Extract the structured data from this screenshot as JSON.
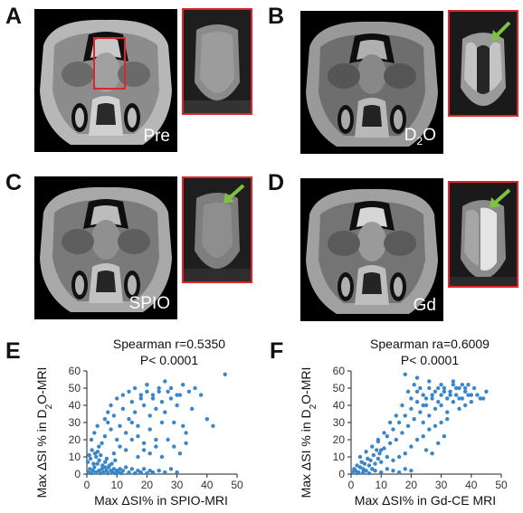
{
  "panels": {
    "A": {
      "letter": "A",
      "label": "Pre"
    },
    "B": {
      "letter": "B",
      "label_main": "D",
      "label_sub": "2",
      "label_tail": "O"
    },
    "C": {
      "letter": "C",
      "label": "SPIO"
    },
    "D": {
      "letter": "D",
      "label": "Gd"
    },
    "E": {
      "letter": "E"
    },
    "F": {
      "letter": "F"
    }
  },
  "colors": {
    "inset_border": "#e0242a",
    "arrow": "#7fc241",
    "points": "#3a86c8"
  },
  "chart_data": [
    {
      "type": "scatter",
      "panel": "E",
      "annotation": [
        "Spearman r=0.5350",
        "P< 0.0001"
      ],
      "xlabel": "Max ΔSI% in SPIO-MRI",
      "ylabel_main": "Max ΔSI % in D",
      "ylabel_sub": "2",
      "ylabel_tail": "O-MRI",
      "xlim": [
        0,
        50
      ],
      "ylim": [
        0,
        60
      ],
      "xticks": [
        "0",
        "10",
        "20",
        "30",
        "40",
        "50"
      ],
      "yticks": [
        "0",
        "10",
        "20",
        "30",
        "40",
        "50",
        "60"
      ],
      "points": [
        [
          0.5,
          1
        ],
        [
          1,
          3
        ],
        [
          1.5,
          0.5
        ],
        [
          2,
          2
        ],
        [
          2.5,
          4
        ],
        [
          3,
          1
        ],
        [
          3.5,
          6
        ],
        [
          4,
          2
        ],
        [
          4.5,
          0.5
        ],
        [
          5,
          3
        ],
        [
          5.5,
          1
        ],
        [
          6,
          4
        ],
        [
          6.5,
          2
        ],
        [
          7,
          0.5
        ],
        [
          7.5,
          5
        ],
        [
          8,
          2
        ],
        [
          8.5,
          1
        ],
        [
          9,
          3
        ],
        [
          9.5,
          0.5
        ],
        [
          10,
          2
        ],
        [
          0.3,
          7
        ],
        [
          1.2,
          9
        ],
        [
          2.2,
          6
        ],
        [
          3.1,
          10
        ],
        [
          4.1,
          8
        ],
        [
          5.2,
          5
        ],
        [
          6.1,
          7
        ],
        [
          7.2,
          4
        ],
        [
          8.3,
          6
        ],
        [
          9.4,
          8
        ],
        [
          0.8,
          11
        ],
        [
          2.7,
          12
        ],
        [
          4.6,
          11
        ],
        [
          6.6,
          9
        ],
        [
          1.7,
          14
        ],
        [
          3.6,
          13
        ],
        [
          10.5,
          1
        ],
        [
          11,
          3
        ],
        [
          11.5,
          0.5
        ],
        [
          12,
          2
        ],
        [
          13,
          4
        ],
        [
          14,
          1
        ],
        [
          15,
          3
        ],
        [
          16,
          0.5
        ],
        [
          17,
          2
        ],
        [
          18,
          1
        ],
        [
          19,
          3
        ],
        [
          20,
          0.5
        ],
        [
          21,
          2
        ],
        [
          22,
          1
        ],
        [
          24,
          2
        ],
        [
          26,
          1
        ],
        [
          28,
          3
        ],
        [
          30,
          1
        ],
        [
          1.5,
          20
        ],
        [
          2.5,
          24
        ],
        [
          3.5,
          28
        ],
        [
          4,
          16
        ],
        [
          5,
          18
        ],
        [
          6,
          22
        ],
        [
          7,
          30
        ],
        [
          8,
          26
        ],
        [
          9,
          34
        ],
        [
          10,
          20
        ],
        [
          11,
          28
        ],
        [
          12,
          38
        ],
        [
          13,
          24
        ],
        [
          14,
          32
        ],
        [
          15,
          42
        ],
        [
          16,
          36
        ],
        [
          17,
          28
        ],
        [
          18,
          44
        ],
        [
          19,
          40
        ],
        [
          20,
          48
        ],
        [
          21,
          34
        ],
        [
          22,
          46
        ],
        [
          23,
          38
        ],
        [
          24,
          50
        ],
        [
          25,
          42
        ],
        [
          26,
          36
        ],
        [
          27,
          48
        ],
        [
          28,
          44
        ],
        [
          29,
          30
        ],
        [
          30,
          40
        ],
        [
          31,
          46
        ],
        [
          32,
          28
        ],
        [
          33,
          24
        ],
        [
          35,
          38
        ],
        [
          38,
          46
        ],
        [
          40,
          32
        ],
        [
          42,
          28
        ],
        [
          46,
          58
        ],
        [
          10,
          44
        ],
        [
          12,
          46
        ],
        [
          14,
          48
        ],
        [
          16,
          50
        ],
        [
          18,
          46
        ],
        [
          20,
          52
        ],
        [
          22,
          44
        ],
        [
          24,
          48
        ],
        [
          26,
          54
        ],
        [
          28,
          50
        ],
        [
          30,
          46
        ],
        [
          32,
          52
        ],
        [
          34,
          48
        ],
        [
          36,
          50
        ],
        [
          15,
          30
        ],
        [
          17,
          22
        ],
        [
          19,
          18
        ],
        [
          21,
          26
        ],
        [
          23,
          20
        ],
        [
          25,
          30
        ],
        [
          9,
          12
        ],
        [
          11,
          16
        ],
        [
          13,
          14
        ],
        [
          15,
          20
        ],
        [
          17,
          10
        ],
        [
          19,
          14
        ],
        [
          21,
          12
        ],
        [
          23,
          16
        ],
        [
          25,
          10
        ],
        [
          27,
          20
        ],
        [
          29,
          16
        ],
        [
          31,
          12
        ],
        [
          33,
          18
        ],
        [
          8,
          40
        ],
        [
          7,
          36
        ],
        [
          6,
          32
        ]
      ]
    },
    {
      "type": "scatter",
      "panel": "F",
      "annotation": [
        "Spearman ra=0.6009",
        "P< 0.0001"
      ],
      "xlabel": "Max ΔSI% in Gd-CE MRI",
      "ylabel_main": "Max ΔSI % in D",
      "ylabel_sub": "2",
      "ylabel_tail": "O-MRI",
      "xlim": [
        0,
        50
      ],
      "ylim": [
        0,
        60
      ],
      "xticks": [
        "0",
        "10",
        "20",
        "30",
        "40",
        "50"
      ],
      "yticks": [
        "0",
        "10",
        "20",
        "30",
        "40",
        "50",
        "60"
      ],
      "points": [
        [
          0.5,
          1
        ],
        [
          1,
          3
        ],
        [
          1.5,
          2
        ],
        [
          2,
          5
        ],
        [
          2.5,
          1
        ],
        [
          3,
          4
        ],
        [
          3.5,
          7
        ],
        [
          4,
          3
        ],
        [
          4.5,
          6
        ],
        [
          5,
          2
        ],
        [
          5.5,
          9
        ],
        [
          6,
          5
        ],
        [
          6.5,
          8
        ],
        [
          7,
          3
        ],
        [
          7.5,
          11
        ],
        [
          8,
          6
        ],
        [
          8.5,
          14
        ],
        [
          9,
          9
        ],
        [
          9.5,
          12
        ],
        [
          10,
          7
        ],
        [
          2,
          0.5
        ],
        [
          4,
          1
        ],
        [
          6,
          0.5
        ],
        [
          8,
          2
        ],
        [
          10,
          1
        ],
        [
          12,
          3
        ],
        [
          14,
          2
        ],
        [
          16,
          1
        ],
        [
          18,
          3
        ],
        [
          20,
          2
        ],
        [
          3,
          10
        ],
        [
          5,
          13
        ],
        [
          7,
          16
        ],
        [
          9,
          19
        ],
        [
          11,
          15
        ],
        [
          12,
          22
        ],
        [
          13,
          18
        ],
        [
          14,
          26
        ],
        [
          15,
          20
        ],
        [
          16,
          30
        ],
        [
          17,
          24
        ],
        [
          18,
          34
        ],
        [
          19,
          28
        ],
        [
          20,
          38
        ],
        [
          21,
          32
        ],
        [
          22,
          42
        ],
        [
          23,
          36
        ],
        [
          24,
          46
        ],
        [
          25,
          40
        ],
        [
          26,
          50
        ],
        [
          27,
          44
        ],
        [
          28,
          48
        ],
        [
          29,
          42
        ],
        [
          30,
          46
        ],
        [
          31,
          50
        ],
        [
          32,
          44
        ],
        [
          33,
          48
        ],
        [
          34,
          52
        ],
        [
          35,
          46
        ],
        [
          36,
          50
        ],
        [
          37,
          44
        ],
        [
          38,
          48
        ],
        [
          39,
          52
        ],
        [
          40,
          46
        ],
        [
          41,
          50
        ],
        [
          43,
          44
        ],
        [
          45,
          48
        ],
        [
          18,
          58
        ],
        [
          22,
          56
        ],
        [
          26,
          54
        ],
        [
          30,
          52
        ],
        [
          34,
          54
        ],
        [
          38,
          50
        ],
        [
          24,
          30
        ],
        [
          26,
          34
        ],
        [
          28,
          38
        ],
        [
          30,
          40
        ],
        [
          32,
          36
        ],
        [
          34,
          42
        ],
        [
          36,
          38
        ],
        [
          20,
          16
        ],
        [
          22,
          20
        ],
        [
          24,
          22
        ],
        [
          18,
          12
        ],
        [
          16,
          10
        ],
        [
          14,
          8
        ],
        [
          12,
          10
        ],
        [
          10,
          14
        ],
        [
          28,
          28
        ],
        [
          30,
          30
        ],
        [
          32,
          32
        ],
        [
          24,
          40
        ],
        [
          22,
          48
        ],
        [
          20,
          44
        ],
        [
          36,
          44
        ],
        [
          38,
          40
        ],
        [
          40,
          42
        ],
        [
          42,
          46
        ],
        [
          44,
          44
        ],
        [
          26,
          26
        ],
        [
          19,
          48
        ],
        [
          21,
          52
        ],
        [
          23,
          50
        ],
        [
          25,
          44
        ],
        [
          27,
          46
        ],
        [
          29,
          50
        ],
        [
          31,
          48
        ],
        [
          33,
          46
        ],
        [
          35,
          50
        ],
        [
          37,
          52
        ],
        [
          39,
          46
        ],
        [
          17,
          40
        ],
        [
          15,
          34
        ],
        [
          13,
          30
        ],
        [
          11,
          24
        ],
        [
          9,
          20
        ],
        [
          25,
          14
        ],
        [
          27,
          12
        ],
        [
          29,
          18
        ],
        [
          31,
          22
        ]
      ]
    }
  ]
}
